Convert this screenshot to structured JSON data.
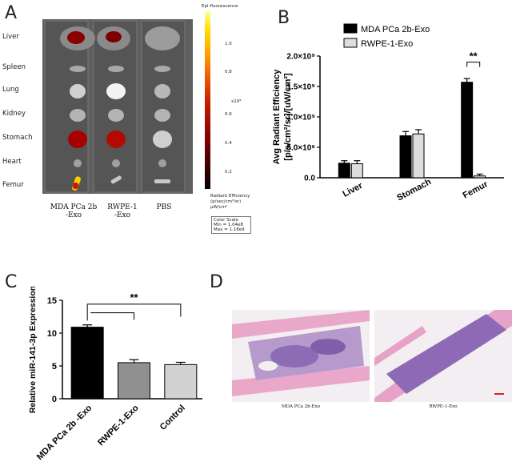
{
  "panels": {
    "a": {
      "letter": "A",
      "organs": [
        "Liver",
        "Spleen",
        "Lung",
        "Kidney",
        "Stomach",
        "Heart",
        "Femur"
      ],
      "groups": [
        {
          "line1": "MDA PCa 2b",
          "line2": "-Exo"
        },
        {
          "line1": "RWPE-1",
          "line2": "-Exo"
        },
        {
          "line1": "PBS",
          "line2": ""
        }
      ],
      "colorbar": {
        "title": "Epi-fluorescence",
        "ticks": [
          "1.0",
          "0.8",
          "0.6",
          "0.4",
          "0.2"
        ],
        "multiplier": "x10⁹",
        "unit_label": "Radiant Efficiency",
        "unit_line2": "(p/sec/cm²/sr)",
        "unit_line3": "µW/cm²",
        "scale_title": "Color Scale",
        "scale_min": "Min = 1.04e8",
        "scale_max": "Max = 1.18e9",
        "colors": [
          "#000000",
          "#8a0000",
          "#ee5500",
          "#ffe000",
          "#ffff9a"
        ]
      }
    },
    "b": {
      "letter": "B"
    },
    "c": {
      "letter": "C"
    },
    "d": {
      "letter": "D",
      "captions": [
        "MDA PCa 2b-Exo",
        "RWPE-1-Exo"
      ],
      "colors": {
        "tissue": "#e8a7c8",
        "marrow": "#8e6fb5",
        "background": "#f4eef2"
      }
    }
  },
  "chart_data": [
    {
      "type": "bar",
      "panel": "B",
      "categories": [
        "Liver",
        "Stomach",
        "Femur"
      ],
      "series": [
        {
          "name": "MDA PCa 2b-Exo",
          "values": [
            0.24,
            0.69,
            1.57
          ],
          "errors": [
            0.04,
            0.07,
            0.06
          ],
          "color": "#000000"
        },
        {
          "name": "RWPE-1-Exo",
          "values": [
            0.23,
            0.72,
            0.03
          ],
          "errors": [
            0.05,
            0.07,
            0.03
          ],
          "color": "#dddddd"
        }
      ],
      "ylabel_line1": "Avg Radiant Efficiency",
      "ylabel_line2": "[p/s/cm²/sr]/[uW/cm²]",
      "ylim": [
        0,
        2.0
      ],
      "yticks": [
        {
          "v": 0,
          "label": "0.0"
        },
        {
          "v": 0.5,
          "label": "5.0×10⁸"
        },
        {
          "v": 1.0,
          "label": "1.0×10⁹"
        },
        {
          "v": 1.5,
          "label": "1.5×10⁹"
        },
        {
          "v": 2.0,
          "label": "2.0×10⁹"
        }
      ],
      "significance": [
        {
          "category": "Femur",
          "label": "**"
        }
      ],
      "legend_position": "top-left"
    },
    {
      "type": "bar",
      "panel": "C",
      "categories": [
        "MDA PCa 2b -Exo",
        "RWPE-1-Exo",
        "Control"
      ],
      "values": [
        10.9,
        5.5,
        5.2
      ],
      "errors": [
        0.35,
        0.45,
        0.35
      ],
      "colors": [
        "#000000",
        "#909090",
        "#d2d2d2"
      ],
      "ylabel": "Relative miR-141-3p Expression",
      "ylim": [
        0,
        15
      ],
      "yticks": [
        0,
        5,
        10,
        15
      ],
      "significance": [
        {
          "from": "MDA PCa 2b -Exo",
          "to": [
            "RWPE-1-Exo",
            "Control"
          ],
          "label": "**"
        }
      ]
    }
  ]
}
